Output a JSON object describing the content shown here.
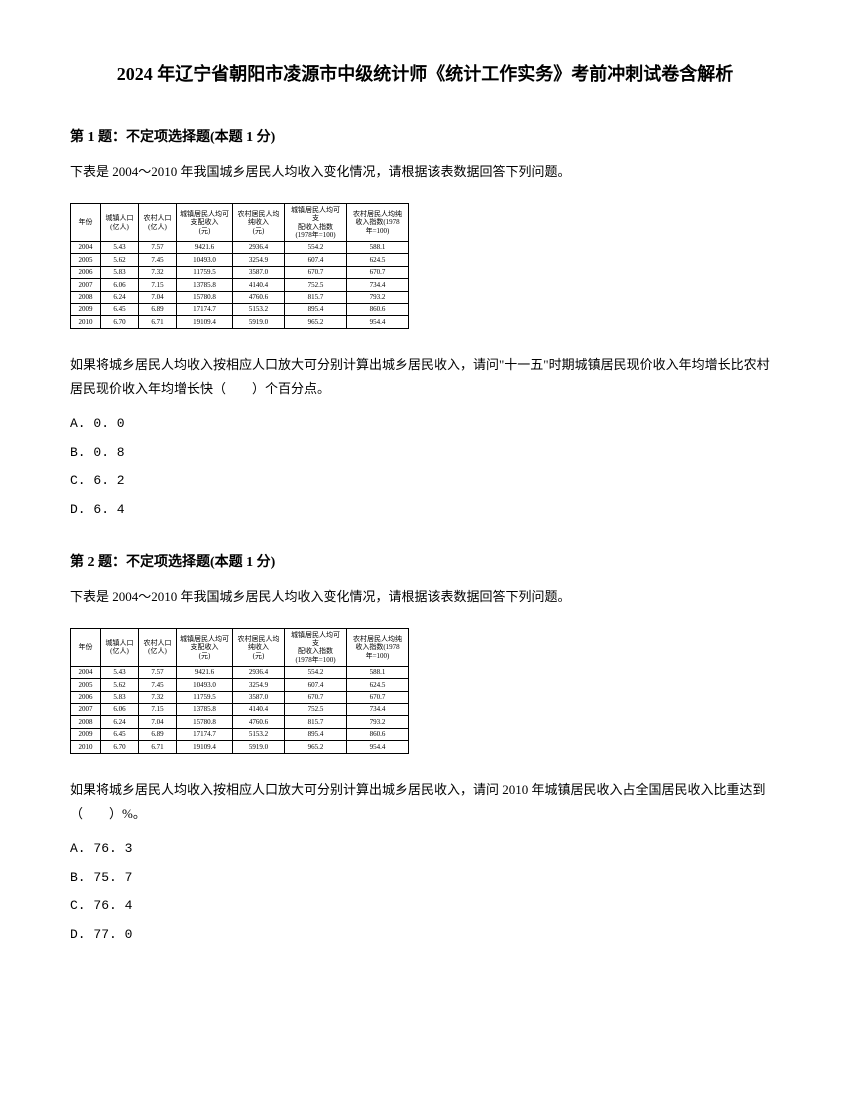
{
  "title": "2024 年辽宁省朝阳市凌源市中级统计师《统计工作实务》考前冲刺试卷含解析",
  "q1": {
    "header": "第 1 题：不定项选择题(本题 1 分)",
    "intro": "下表是 2004～2010 年我国城乡居民人均收入变化情况，请根据该表数据回答下列问题。",
    "question": "如果将城乡居民人均收入按相应人口放大可分别计算出城乡居民收入，请问\"十一五\"时期城镇居民现价收入年均增长比农村居民现价收入年均增长快（　　）个百分点。",
    "options": [
      "A. 0. 0",
      "B. 0. 8",
      "C. 6. 2",
      "D. 6. 4"
    ]
  },
  "q2": {
    "header": "第 2 题：不定项选择题(本题 1 分)",
    "intro": "下表是 2004～2010 年我国城乡居民人均收入变化情况，请根据该表数据回答下列问题。",
    "question": "如果将城乡居民人均收入按相应人口放大可分别计算出城乡居民收入，请问 2010 年城镇居民收入占全国居民收入比重达到（　　）%。",
    "options": [
      "A. 76. 3",
      "B. 75. 7",
      "C. 76. 4",
      "D. 77. 0"
    ]
  },
  "table": {
    "headers": [
      "年份",
      "城镇人口\n(亿人)",
      "农村人口\n(亿人)",
      "城镇居民人均可\n支配收入\n(元)",
      "农村居民人均\n纯收入\n(元)",
      "城镇居民人均可支\n配收入指数\n(1978年=100)",
      "农村居民人均纯\n收入指数(1978\n年=100)"
    ],
    "rows": [
      [
        "2004",
        "5.43",
        "7.57",
        "9421.6",
        "2936.4",
        "554.2",
        "588.1"
      ],
      [
        "2005",
        "5.62",
        "7.45",
        "10493.0",
        "3254.9",
        "607.4",
        "624.5"
      ],
      [
        "2006",
        "5.83",
        "7.32",
        "11759.5",
        "3587.0",
        "670.7",
        "670.7"
      ],
      [
        "2007",
        "6.06",
        "7.15",
        "13785.8",
        "4140.4",
        "752.5",
        "734.4"
      ],
      [
        "2008",
        "6.24",
        "7.04",
        "15780.8",
        "4760.6",
        "815.7",
        "793.2"
      ],
      [
        "2009",
        "6.45",
        "6.89",
        "17174.7",
        "5153.2",
        "895.4",
        "860.6"
      ],
      [
        "2010",
        "6.70",
        "6.71",
        "19109.4",
        "5919.0",
        "965.2",
        "954.4"
      ]
    ],
    "col_widths": [
      "30px",
      "38px",
      "38px",
      "56px",
      "52px",
      "62px",
      "62px"
    ]
  },
  "colors": {
    "text": "#000000",
    "background": "#ffffff",
    "border": "#000000"
  }
}
